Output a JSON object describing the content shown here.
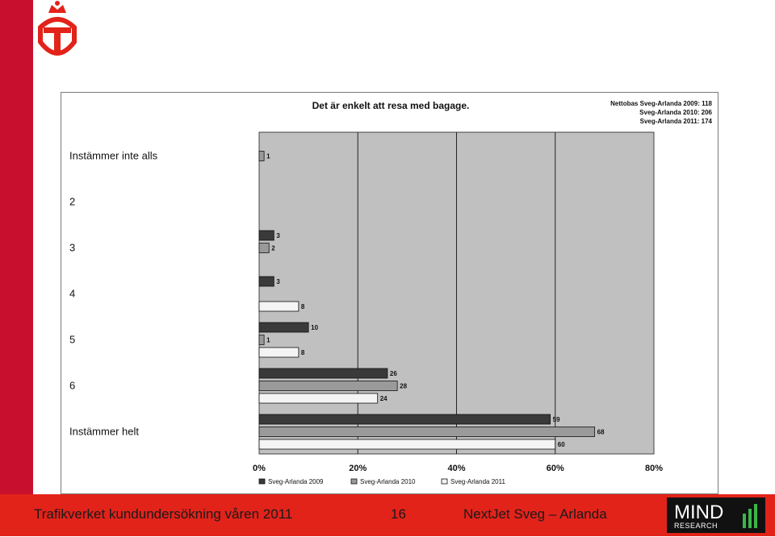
{
  "colors": {
    "accent_red": "#e2231a",
    "strip_red": "#c8102e",
    "plot_bg": "#c0c0c0",
    "series_2009": "#3a3a3a",
    "series_2010": "#9a9a9a",
    "series_2011": "#f4f4f4"
  },
  "chart_data": {
    "type": "bar",
    "orientation": "horizontal",
    "title": "Det är enkelt att resa med bagage.",
    "nettobas": [
      "Nettobas  Sveg-Arlanda 2009: 118",
      "Sveg-Arlanda 2010: 206",
      "Sveg-Arlanda 2011: 174"
    ],
    "categories": [
      "Instämmer inte alls",
      "2",
      "3",
      "4",
      "5",
      "6",
      "Instämmer helt"
    ],
    "series": [
      {
        "name": "Sveg-Arlanda 2009",
        "values": [
          null,
          null,
          3,
          3,
          10,
          26,
          59
        ]
      },
      {
        "name": "Sveg-Arlanda 2010",
        "values": [
          1,
          null,
          2,
          null,
          1,
          28,
          68
        ]
      },
      {
        "name": "Sveg-Arlanda 2011",
        "values": [
          null,
          null,
          null,
          8,
          8,
          24,
          60
        ]
      }
    ],
    "xlim": [
      0,
      80
    ],
    "xticks": [
      "0%",
      "20%",
      "40%",
      "60%",
      "80%"
    ],
    "grid": true,
    "legend_position": "bottom"
  },
  "footer": {
    "left_text": "Trafikverket kundundersökning våren 2011",
    "page_number": "16",
    "right_text": "NextJet  Sveg – Arlanda",
    "logo_top": "MIND",
    "logo_bottom": "RESEARCH"
  }
}
